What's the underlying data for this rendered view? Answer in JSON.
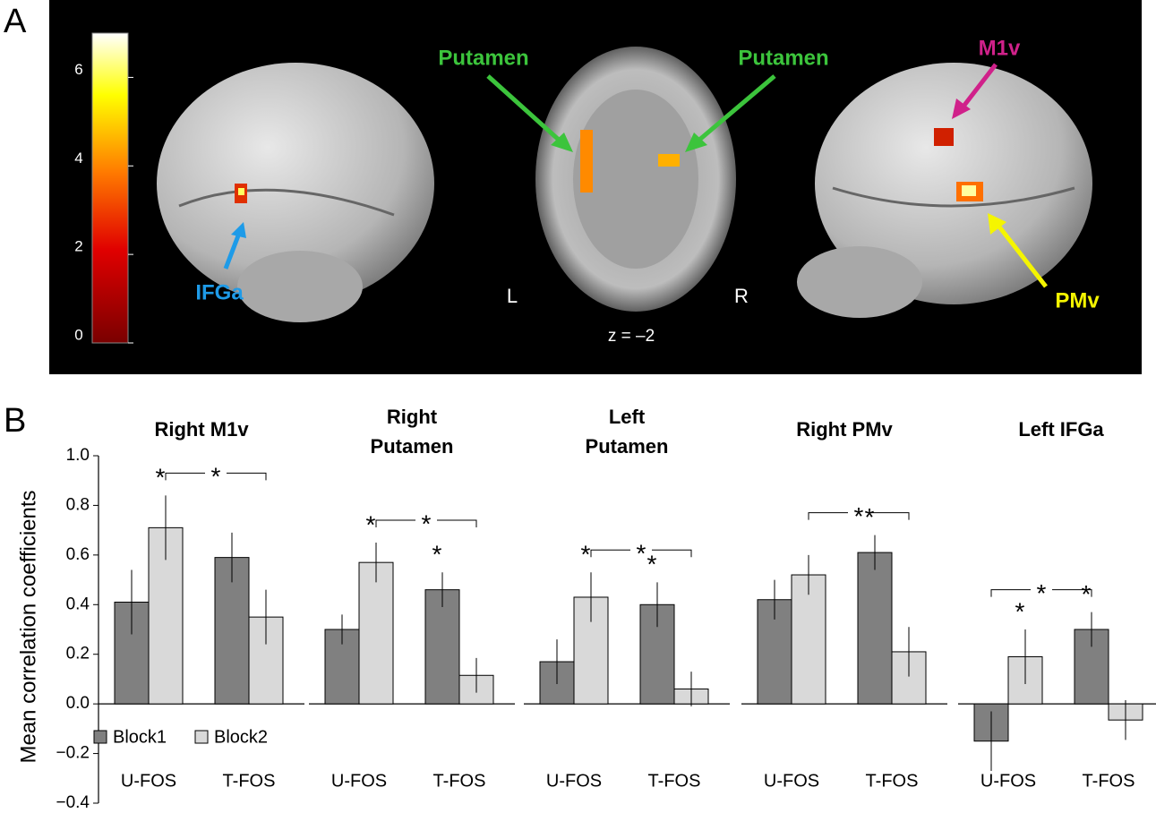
{
  "figure": {
    "panel_labels": [
      "A",
      "B"
    ],
    "brain_panel": {
      "colorbar": {
        "lim": [
          0,
          7
        ],
        "ticks": [
          0,
          2,
          4,
          6
        ]
      },
      "labels": [
        "IFGa",
        "Putamen",
        "Putamen",
        "M1v",
        "PMv"
      ],
      "hemispheres": [
        "L",
        "R"
      ],
      "slice": "z = –2"
    }
  },
  "chart_data": [
    {
      "type": "bar",
      "title": [
        "Right M1v"
      ],
      "ylabel": "Mean correlation coefficients",
      "ylim": [
        -0.4,
        1.0
      ],
      "yticks": [
        {
          "value": -0.4,
          "label": "−0.4"
        },
        {
          "value": -0.2,
          "label": "−0.2"
        },
        {
          "value": 0,
          "label": "0.0"
        },
        0.2,
        0.4,
        0.6,
        0.8,
        {
          "value": 1.0,
          "label": "1.0"
        }
      ],
      "categories": [
        "U-FOS",
        "T-FOS"
      ],
      "series": [
        {
          "name": "Block1",
          "color": "#808080",
          "values": [
            0.41,
            0.59
          ],
          "errors": [
            0.13,
            0.1
          ],
          "sig": [
            null,
            null
          ]
        },
        {
          "name": "Block2",
          "color": "#d9d9d9",
          "values": [
            0.71,
            0.35
          ],
          "errors": [
            0.13,
            0.11
          ],
          "sig": [
            "*",
            null
          ]
        }
      ],
      "bracket": {
        "label": "*",
        "series": 1
      }
    },
    {
      "type": "bar",
      "title": [
        "Right",
        "Putamen"
      ],
      "ylim": [
        -0.4,
        1.0
      ],
      "categories": [
        "U-FOS",
        "T-FOS"
      ],
      "series": [
        {
          "color": "#808080",
          "values": [
            0.3,
            0.46
          ],
          "errors": [
            0.06,
            0.07
          ],
          "sig": [
            null,
            "*"
          ]
        },
        {
          "color": "#d9d9d9",
          "values": [
            0.57,
            0.115
          ],
          "errors": [
            0.08,
            0.07
          ],
          "sig": [
            "*",
            null
          ]
        }
      ],
      "bracket": {
        "label": "*",
        "series": 1
      }
    },
    {
      "type": "bar",
      "title": [
        "Left",
        "Putamen"
      ],
      "ylim": [
        -0.4,
        1.0
      ],
      "categories": [
        "U-FOS",
        "T-FOS"
      ],
      "series": [
        {
          "color": "#808080",
          "values": [
            0.17,
            0.4
          ],
          "errors": [
            0.09,
            0.09
          ],
          "sig": [
            null,
            "*"
          ]
        },
        {
          "color": "#d9d9d9",
          "values": [
            0.43,
            0.06
          ],
          "errors": [
            0.1,
            0.07
          ],
          "sig": [
            "*",
            null
          ]
        }
      ],
      "bracket": {
        "label": "*",
        "series": 1
      }
    },
    {
      "type": "bar",
      "title": [
        "Right PMv"
      ],
      "ylim": [
        -0.4,
        1.0
      ],
      "categories": [
        "U-FOS",
        "T-FOS"
      ],
      "series": [
        {
          "color": "#808080",
          "values": [
            0.42,
            0.61
          ],
          "errors": [
            0.08,
            0.07
          ],
          "sig": [
            null,
            "*"
          ]
        },
        {
          "color": "#d9d9d9",
          "values": [
            0.52,
            0.21
          ],
          "errors": [
            0.08,
            0.1
          ],
          "sig": [
            null,
            null
          ]
        }
      ],
      "bracket": {
        "label": "*",
        "series": 1
      }
    },
    {
      "type": "bar",
      "title": [
        "Left IFGa"
      ],
      "ylim": [
        -0.4,
        1.0
      ],
      "categories": [
        "U-FOS",
        "T-FOS"
      ],
      "series": [
        {
          "color": "#808080",
          "values": [
            -0.15,
            0.3
          ],
          "errors": [
            0.12,
            0.07
          ],
          "sig": [
            null,
            "*"
          ]
        },
        {
          "color": "#d9d9d9",
          "values": [
            0.19,
            -0.065
          ],
          "errors": [
            0.11,
            0.08
          ],
          "sig": [
            "*",
            null
          ]
        }
      ],
      "bracket": {
        "label": "*",
        "series": 0
      }
    }
  ]
}
